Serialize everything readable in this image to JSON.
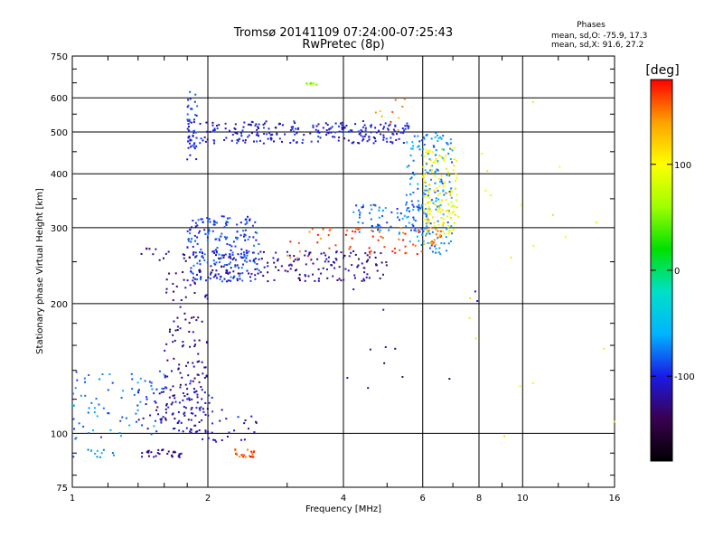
{
  "chart_data": {
    "type": "scatter",
    "title": "Tromsø 20141109 07:24:00-07:25:43",
    "subtitle": "RwPretec (8p)",
    "xlabel": "Frequency [MHz]",
    "ylabel": "Stationary phase Virtual Height [km]",
    "x_scale": "log",
    "y_scale": "log",
    "xlim": [
      1,
      16
    ],
    "ylim": [
      75,
      750
    ],
    "x_ticks": [
      {
        "value": 1,
        "label": "1"
      },
      {
        "value": 2,
        "label": "2"
      },
      {
        "value": 4,
        "label": "4"
      },
      {
        "value": 6,
        "label": "6"
      },
      {
        "value": 8,
        "label": "8"
      },
      {
        "value": 10,
        "label": "10"
      },
      {
        "value": 16,
        "label": "16"
      }
    ],
    "y_ticks": [
      {
        "value": 75,
        "label": "75"
      },
      {
        "value": 100,
        "label": "100"
      },
      {
        "value": 200,
        "label": "200"
      },
      {
        "value": 300,
        "label": "300"
      },
      {
        "value": 400,
        "label": "400"
      },
      {
        "value": 500,
        "label": "500"
      },
      {
        "value": 600,
        "label": "600"
      },
      {
        "value": 750,
        "label": "750"
      }
    ],
    "grid": true,
    "phases": {
      "heading": "Phases",
      "o_line": "mean, sd,O: -75.9, 17.3",
      "x_line": "mean, sd,X:  91.6, 27.2"
    },
    "colorbar": {
      "label": "[deg]",
      "range": [
        -180,
        180
      ],
      "ticks": [
        {
          "value": 100,
          "label": "100"
        },
        {
          "value": 0,
          "label": "0"
        },
        {
          "value": -100,
          "label": "-100"
        }
      ],
      "colors": [
        "#000000",
        "#3a0050",
        "#1a1ae6",
        "#00b4ff",
        "#00e0c8",
        "#00e000",
        "#a0ff00",
        "#ffff00",
        "#ffa000",
        "#ff0000"
      ]
    },
    "series": [
      {
        "x_range": [
          1.8,
          5.6
        ],
        "y_range": [
          470,
          530
        ],
        "phase": -105,
        "count": 260
      },
      {
        "x_range": [
          1.8,
          1.9
        ],
        "y_range": [
          430,
          620
        ],
        "phase": -95,
        "count": 40
      },
      {
        "x_range": [
          4.6,
          5.5
        ],
        "y_range": [
          500,
          600
        ],
        "phase": 140,
        "count": 10
      },
      {
        "x_range": [
          1.8,
          2.6
        ],
        "y_range": [
          225,
          320
        ],
        "phase": -90,
        "count": 220
      },
      {
        "x_range": [
          2.0,
          5.0
        ],
        "y_range": [
          225,
          265
        ],
        "phase": -120,
        "count": 170
      },
      {
        "x_range": [
          3.0,
          4.0
        ],
        "y_range": [
          255,
          300
        ],
        "phase": 155,
        "count": 18
      },
      {
        "x_range": [
          4.0,
          6.0
        ],
        "y_range": [
          260,
          300
        ],
        "phase": 165,
        "count": 40
      },
      {
        "x_range": [
          4.2,
          6.2
        ],
        "y_range": [
          290,
          340
        ],
        "phase": -80,
        "count": 80
      },
      {
        "x_range": [
          5.5,
          7.0
        ],
        "y_range": [
          260,
          500
        ],
        "phase": -70,
        "count": 170
      },
      {
        "x_range": [
          6.0,
          7.2
        ],
        "y_range": [
          290,
          460
        ],
        "phase": 100,
        "count": 140
      },
      {
        "x_range": [
          6.0,
          6.6
        ],
        "y_range": [
          270,
          300
        ],
        "phase": 150,
        "count": 20
      },
      {
        "x_range": [
          1.4,
          2.0
        ],
        "y_range": [
          250,
          270
        ],
        "phase": -130,
        "count": 20
      },
      {
        "x_range": [
          1.6,
          2.0
        ],
        "y_range": [
          105,
          240
        ],
        "phase": -125,
        "count": 130
      },
      {
        "x_range": [
          1.4,
          2.05
        ],
        "y_range": [
          100,
          140
        ],
        "phase": -110,
        "count": 70
      },
      {
        "x_range": [
          1.0,
          1.6
        ],
        "y_range": [
          97,
          140
        ],
        "phase": -75,
        "count": 70
      },
      {
        "x_range": [
          1.7,
          2.6
        ],
        "y_range": [
          95,
          115
        ],
        "phase": -110,
        "count": 40
      },
      {
        "x_range": [
          1.0,
          1.25
        ],
        "y_range": [
          88,
          92
        ],
        "phase": -70,
        "count": 12
      },
      {
        "x_range": [
          1.4,
          1.75
        ],
        "y_range": [
          88,
          92
        ],
        "phase": -125,
        "count": 30
      },
      {
        "x_range": [
          2.3,
          2.55
        ],
        "y_range": [
          88,
          92
        ],
        "phase": 160,
        "count": 22
      },
      {
        "x_range": [
          3.3,
          3.5
        ],
        "y_range": [
          640,
          650
        ],
        "phase": 55,
        "count": 8
      },
      {
        "x_range": [
          7.5,
          16
        ],
        "y_range": [
          80,
          640
        ],
        "phase": 100,
        "count": 20
      },
      {
        "x_range": [
          4.0,
          8.0
        ],
        "y_range": [
          110,
          220
        ],
        "phase": -120,
        "count": 12
      }
    ]
  }
}
